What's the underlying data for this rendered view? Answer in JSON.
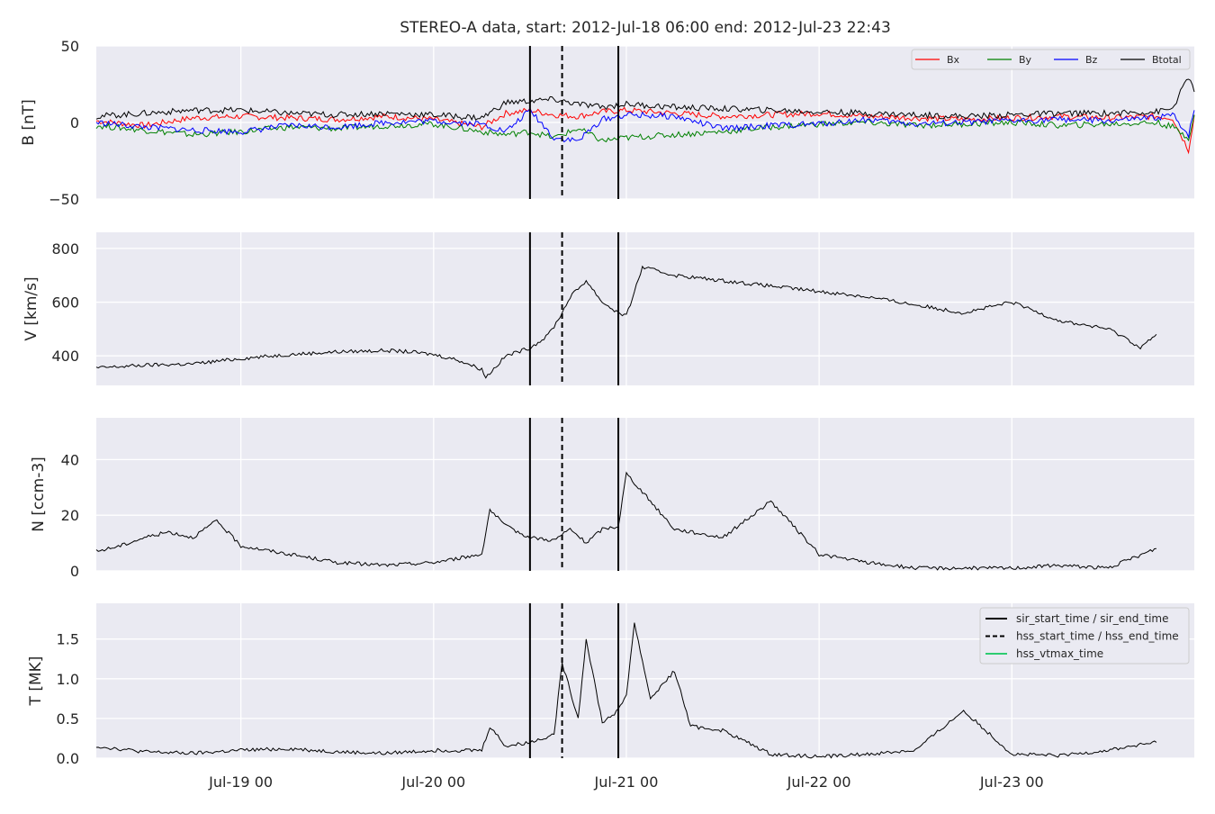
{
  "figure": {
    "title": "STEREO-A data, start: 2012-Jul-18 06:00  end: 2012-Jul-23 22:43"
  },
  "chart_data": [
    {
      "type": "line",
      "panel": "B",
      "ylabel": "B [nT]",
      "ylim": [
        -50,
        50
      ],
      "yticks": [
        50,
        0,
        -50
      ],
      "ytick_labels": [
        "50",
        "0",
        "−50"
      ],
      "series": [
        {
          "name": "Bx",
          "color": "#ff0000",
          "x": [
            "07-18 06:00",
            "07-18 12:00",
            "07-18 18:00",
            "07-19 00:00",
            "07-19 06:00",
            "07-19 12:00",
            "07-19 18:00",
            "07-20 00:00",
            "07-20 06:00",
            "07-20 09:00",
            "07-20 12:00",
            "07-20 15:00",
            "07-20 18:00",
            "07-20 21:00",
            "07-21 00:00",
            "07-21 06:00",
            "07-21 12:00",
            "07-21 18:00",
            "07-22 00:00",
            "07-22 06:00",
            "07-22 12:00",
            "07-22 18:00",
            "07-23 00:00",
            "07-23 06:00",
            "07-23 12:00",
            "07-23 18:00",
            "07-23 20:00",
            "07-23 22:00",
            "07-23 22:43"
          ],
          "y": [
            1,
            -2,
            3,
            4,
            3,
            2,
            4,
            2,
            -3,
            6,
            8,
            5,
            4,
            7,
            8,
            6,
            4,
            5,
            6,
            4,
            3,
            2,
            3,
            4,
            3,
            4,
            3,
            -18,
            5
          ]
        },
        {
          "name": "By",
          "color": "#008000",
          "x": [
            "07-18 06:00",
            "07-18 12:00",
            "07-18 18:00",
            "07-19 00:00",
            "07-19 06:00",
            "07-19 12:00",
            "07-19 18:00",
            "07-20 00:00",
            "07-20 06:00",
            "07-20 09:00",
            "07-20 12:00",
            "07-20 15:00",
            "07-20 18:00",
            "07-20 21:00",
            "07-21 00:00",
            "07-21 06:00",
            "07-21 12:00",
            "07-21 18:00",
            "07-22 00:00",
            "07-22 06:00",
            "07-22 12:00",
            "07-22 18:00",
            "07-23 00:00",
            "07-23 06:00",
            "07-23 12:00",
            "07-23 18:00",
            "07-23 20:00",
            "07-23 22:00",
            "07-23 22:43"
          ],
          "y": [
            -2,
            -5,
            -8,
            -6,
            -3,
            -4,
            -2,
            -1,
            -6,
            -8,
            -6,
            -10,
            -4,
            -12,
            -10,
            -8,
            -6,
            -3,
            -1,
            0,
            -2,
            -1,
            0,
            -2,
            -1,
            0,
            -3,
            -10,
            5
          ]
        },
        {
          "name": "Bz",
          "color": "#0000ff",
          "x": [
            "07-18 06:00",
            "07-18 12:00",
            "07-18 18:00",
            "07-19 00:00",
            "07-19 06:00",
            "07-19 12:00",
            "07-19 18:00",
            "07-20 00:00",
            "07-20 06:00",
            "07-20 09:00",
            "07-20 12:00",
            "07-20 15:00",
            "07-20 18:00",
            "07-20 21:00",
            "07-21 00:00",
            "07-21 06:00",
            "07-21 12:00",
            "07-21 18:00",
            "07-22 00:00",
            "07-22 06:00",
            "07-22 12:00",
            "07-22 18:00",
            "07-23 00:00",
            "07-23 06:00",
            "07-23 12:00",
            "07-23 18:00",
            "07-23 20:00",
            "07-23 22:00",
            "07-23 22:43"
          ],
          "y": [
            0,
            -3,
            -5,
            -6,
            -2,
            -3,
            0,
            1,
            -1,
            -6,
            8,
            -10,
            -12,
            2,
            5,
            4,
            -4,
            -2,
            -1,
            2,
            -1,
            0,
            1,
            2,
            1,
            3,
            5,
            -8,
            8
          ]
        },
        {
          "name": "Btotal",
          "color": "#000000",
          "x": [
            "07-18 06:00",
            "07-18 12:00",
            "07-18 18:00",
            "07-19 00:00",
            "07-19 06:00",
            "07-19 12:00",
            "07-19 18:00",
            "07-20 00:00",
            "07-20 06:00",
            "07-20 09:00",
            "07-20 12:00",
            "07-20 15:00",
            "07-20 18:00",
            "07-20 21:00",
            "07-21 00:00",
            "07-21 06:00",
            "07-21 12:00",
            "07-21 18:00",
            "07-22 00:00",
            "07-22 06:00",
            "07-22 12:00",
            "07-22 18:00",
            "07-23 00:00",
            "07-23 06:00",
            "07-23 12:00",
            "07-23 18:00",
            "07-23 20:00",
            "07-23 22:00",
            "07-23 22:43"
          ],
          "y": [
            4,
            6,
            8,
            8,
            6,
            5,
            6,
            5,
            3,
            13,
            14,
            15,
            12,
            10,
            12,
            10,
            9,
            8,
            7,
            6,
            5,
            4,
            5,
            6,
            6,
            7,
            9,
            30,
            20
          ]
        }
      ]
    },
    {
      "type": "line",
      "panel": "V",
      "ylabel": "V [km/s]",
      "ylim": [
        290,
        860
      ],
      "yticks": [
        800,
        600,
        400
      ],
      "ytick_labels": [
        "800",
        "600",
        "400"
      ],
      "series": [
        {
          "name": "",
          "color": "#000000",
          "x": [
            "07-18 06:00",
            "07-18 12:00",
            "07-18 18:00",
            "07-19 00:00",
            "07-19 06:00",
            "07-19 12:00",
            "07-19 18:00",
            "07-19 21:00",
            "07-20 00:00",
            "07-20 03:00",
            "07-20 06:00",
            "07-20 06:30",
            "07-20 09:00",
            "07-20 12:00",
            "07-20 14:00",
            "07-20 15:00",
            "07-20 16:00",
            "07-20 17:00",
            "07-20 19:00",
            "07-20 21:00",
            "07-20 23:00",
            "07-21 00:00",
            "07-21 02:00",
            "07-21 06:00",
            "07-21 12:00",
            "07-21 18:00",
            "07-22 00:00",
            "07-22 06:00",
            "07-22 10:00",
            "07-22 13:00",
            "07-22 18:00",
            "07-23 00:00",
            "07-23 06:00",
            "07-23 12:00",
            "07-23 14:00",
            "07-23 16:00",
            "07-23 18:00"
          ],
          "y": [
            355,
            365,
            370,
            390,
            405,
            415,
            420,
            415,
            405,
            385,
            350,
            320,
            400,
            430,
            470,
            510,
            560,
            620,
            680,
            600,
            560,
            548,
            730,
            700,
            680,
            660,
            640,
            620,
            600,
            585,
            560,
            600,
            530,
            500,
            470,
            430,
            480
          ]
        }
      ]
    },
    {
      "type": "line",
      "panel": "N",
      "ylabel": "N [ccm-3]",
      "ylim": [
        0,
        55
      ],
      "yticks": [
        40,
        20,
        0
      ],
      "ytick_labels": [
        "40",
        "20",
        "0"
      ],
      "series": [
        {
          "name": "",
          "color": "#000000",
          "x": [
            "07-18 06:00",
            "07-18 09:00",
            "07-18 12:00",
            "07-18 15:00",
            "07-18 18:00",
            "07-18 21:00",
            "07-19 00:00",
            "07-19 06:00",
            "07-19 12:00",
            "07-19 18:00",
            "07-20 00:00",
            "07-20 06:00",
            "07-20 07:00",
            "07-20 09:00",
            "07-20 12:00",
            "07-20 15:00",
            "07-20 17:00",
            "07-20 19:00",
            "07-20 21:00",
            "07-20 23:00",
            "07-21 00:00",
            "07-21 06:00",
            "07-21 12:00",
            "07-21 18:00",
            "07-22 00:00",
            "07-22 06:00",
            "07-22 12:00",
            "07-22 18:00",
            "07-23 00:00",
            "07-23 06:00",
            "07-23 12:00",
            "07-23 18:00"
          ],
          "y": [
            7,
            9,
            12,
            14,
            12,
            18,
            9,
            6,
            3,
            2,
            3,
            6,
            22,
            16,
            12,
            11,
            15,
            10,
            15,
            16,
            35,
            15,
            12,
            25,
            6,
            3,
            1,
            1,
            1,
            2,
            1,
            8
          ]
        }
      ]
    },
    {
      "type": "line",
      "panel": "T",
      "ylabel": "T [MK]",
      "ylim": [
        0,
        1.95
      ],
      "yticks": [
        1.5,
        1.0,
        0.5,
        0.0
      ],
      "ytick_labels": [
        "1.5",
        "1.0",
        "0.5",
        "0.0"
      ],
      "xticks": [
        "07-19 00:00",
        "07-20 00:00",
        "07-21 00:00",
        "07-22 00:00",
        "07-23 00:00"
      ],
      "xtick_labels": [
        "Jul-19 00",
        "Jul-20 00",
        "Jul-21 00",
        "Jul-22 00",
        "Jul-23 00"
      ],
      "series": [
        {
          "name": "",
          "color": "#000000",
          "x": [
            "07-18 06:00",
            "07-18 12:00",
            "07-18 18:00",
            "07-19 00:00",
            "07-19 06:00",
            "07-19 12:00",
            "07-19 18:00",
            "07-20 00:00",
            "07-20 06:00",
            "07-20 07:00",
            "07-20 09:00",
            "07-20 12:00",
            "07-20 15:00",
            "07-20 16:00",
            "07-20 18:00",
            "07-20 19:00",
            "07-20 21:00",
            "07-20 23:00",
            "07-21 00:00",
            "07-21 01:00",
            "07-21 03:00",
            "07-21 06:00",
            "07-21 08:00",
            "07-21 12:00",
            "07-21 18:00",
            "07-22 00:00",
            "07-22 06:00",
            "07-22 12:00",
            "07-22 18:00",
            "07-23 00:00",
            "07-23 06:00",
            "07-23 12:00",
            "07-23 18:00"
          ],
          "y": [
            0.15,
            0.08,
            0.06,
            0.1,
            0.12,
            0.08,
            0.06,
            0.1,
            0.1,
            0.4,
            0.15,
            0.2,
            0.3,
            1.2,
            0.5,
            1.5,
            0.45,
            0.6,
            0.8,
            1.7,
            0.75,
            1.1,
            0.4,
            0.35,
            0.05,
            0.02,
            0.05,
            0.1,
            0.6,
            0.05,
            0.03,
            0.1,
            0.2
          ]
        }
      ],
      "legend": {
        "location": "upper right",
        "entries": [
          {
            "label": "sir_start_time / sir_end_time",
            "color": "#000000",
            "style": "solid"
          },
          {
            "label": "hss_start_time / hss_end_time",
            "color": "#000000",
            "style": "dashed"
          },
          {
            "label": "hss_vtmax_time",
            "color": "#2ecc71",
            "style": "solid"
          }
        ]
      }
    }
  ],
  "event_lines": [
    {
      "time": "07-20 12:00",
      "style": "solid"
    },
    {
      "time": "07-20 16:00",
      "style": "dashed"
    },
    {
      "time": "07-20 23:00",
      "style": "solid"
    }
  ],
  "x_range": [
    "07-18 06:00",
    "07-23 22:43"
  ],
  "grid": true,
  "b_legend_location": "upper right"
}
